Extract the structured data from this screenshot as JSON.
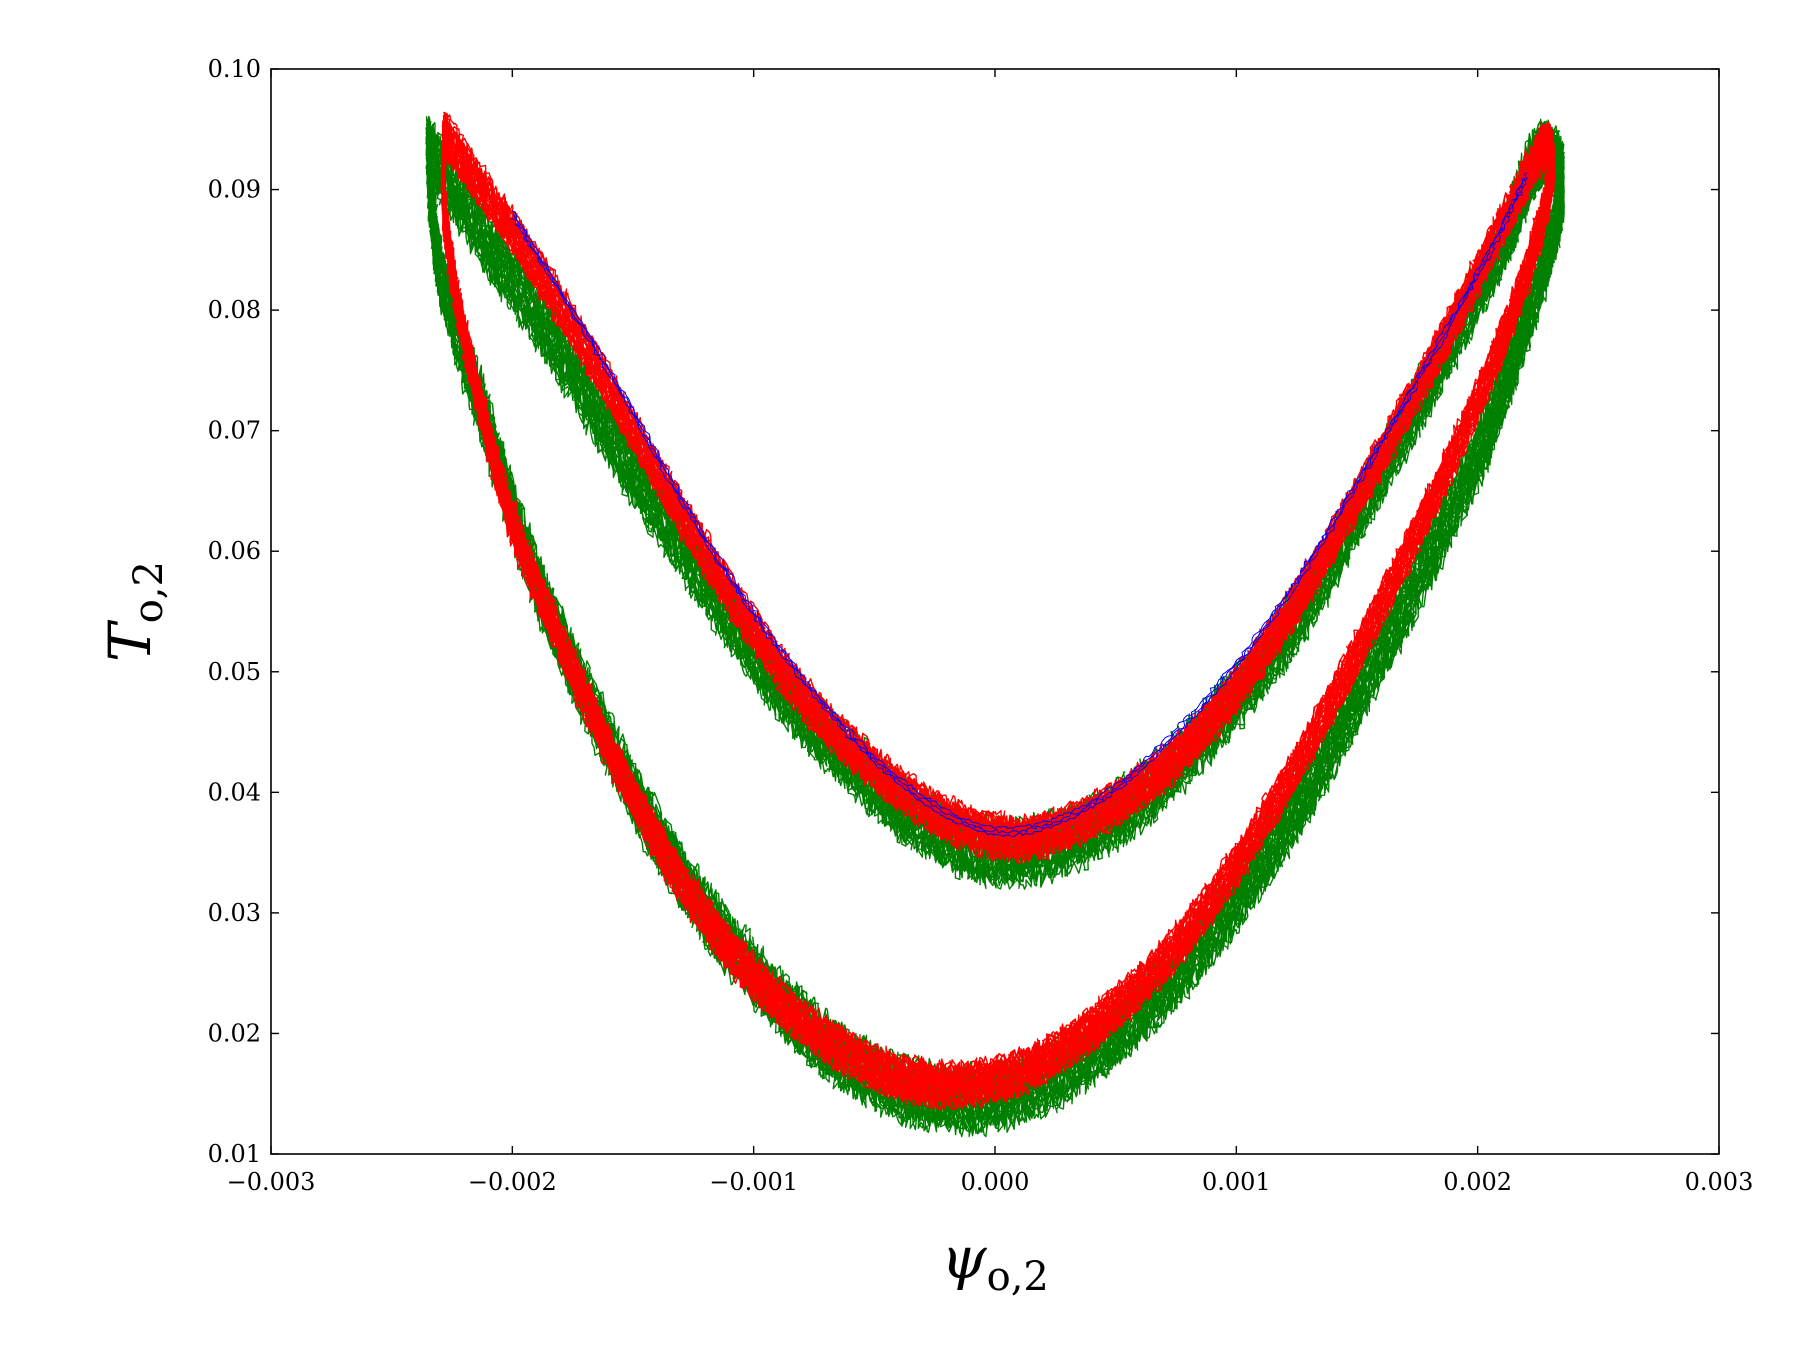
{
  "chart_data": {
    "type": "line",
    "title": "",
    "xlabel": "ψ_o,2",
    "ylabel": "T_o,2",
    "xlabel_parts": {
      "main": "ψ",
      "sub": "o,2"
    },
    "ylabel_parts": {
      "main": "T",
      "sub": "o,2"
    },
    "xlim": [
      -0.003,
      0.003
    ],
    "ylim": [
      0.01,
      0.1
    ],
    "xticks": [
      -0.003,
      -0.002,
      -0.001,
      0.0,
      0.001,
      0.002,
      0.003
    ],
    "xtick_labels": [
      "−0.003",
      "−0.002",
      "−0.001",
      "0.000",
      "0.001",
      "0.002",
      "0.003"
    ],
    "yticks": [
      0.01,
      0.02,
      0.03,
      0.04,
      0.05,
      0.06,
      0.07,
      0.08,
      0.09,
      0.1
    ],
    "ytick_labels": [
      "0.01",
      "0.02",
      "0.03",
      "0.04",
      "0.05",
      "0.06",
      "0.07",
      "0.08",
      "0.09",
      "0.10"
    ],
    "grid": false,
    "legend": "none",
    "series": [
      {
        "color": "#008000",
        "band_halfwidth": 0.0022,
        "points": [
          [
            -0.00235,
            0.0935
          ],
          [
            -0.0021,
            0.0855
          ],
          [
            -0.0018,
            0.0765
          ],
          [
            -0.0015,
            0.0665
          ],
          [
            -0.0012,
            0.0575
          ],
          [
            -0.0009,
            0.049
          ],
          [
            -0.0006,
            0.0425
          ],
          [
            -0.0003,
            0.0375
          ],
          [
            0.0,
            0.035
          ],
          [
            0.0003,
            0.036
          ],
          [
            0.0006,
            0.0395
          ],
          [
            0.0009,
            0.0455
          ],
          [
            0.0012,
            0.053
          ],
          [
            0.0015,
            0.063
          ],
          [
            0.0018,
            0.074
          ],
          [
            0.0021,
            0.0855
          ],
          [
            0.00225,
            0.0925
          ],
          [
            0.00235,
            0.09
          ],
          [
            0.0022,
            0.079
          ],
          [
            0.002,
            0.068
          ],
          [
            0.0017,
            0.0555
          ],
          [
            0.0014,
            0.044
          ],
          [
            0.0011,
            0.034
          ],
          [
            0.0008,
            0.026
          ],
          [
            0.0005,
            0.02
          ],
          [
            0.0002,
            0.016
          ],
          [
            -0.0001,
            0.0145
          ],
          [
            -0.0004,
            0.0155
          ],
          [
            -0.0007,
            0.019
          ],
          [
            -0.001,
            0.025
          ],
          [
            -0.0013,
            0.033
          ],
          [
            -0.0016,
            0.044
          ],
          [
            -0.0019,
            0.0575
          ],
          [
            -0.0021,
            0.07
          ],
          [
            -0.0023,
            0.0835
          ],
          [
            -0.00235,
            0.0935
          ]
        ]
      },
      {
        "color": "#ff0000",
        "band_halfwidth": 0.0015,
        "points": [
          [
            -0.00228,
            0.0945
          ],
          [
            -0.002,
            0.0865
          ],
          [
            -0.0017,
            0.077
          ],
          [
            -0.0014,
            0.0665
          ],
          [
            -0.0011,
            0.0565
          ],
          [
            -0.0008,
            0.048
          ],
          [
            -0.0005,
            0.042
          ],
          [
            -0.0002,
            0.0378
          ],
          [
            0.0001,
            0.0362
          ],
          [
            0.0004,
            0.038
          ],
          [
            0.0007,
            0.042
          ],
          [
            0.001,
            0.0485
          ],
          [
            0.0013,
            0.0575
          ],
          [
            0.0016,
            0.068
          ],
          [
            0.0019,
            0.079
          ],
          [
            0.00215,
            0.089
          ],
          [
            0.00228,
            0.0935
          ],
          [
            0.0023,
            0.0905
          ],
          [
            0.00215,
            0.08
          ],
          [
            0.0019,
            0.068
          ],
          [
            0.0016,
            0.0555
          ],
          [
            0.0013,
            0.044
          ],
          [
            0.001,
            0.034
          ],
          [
            0.0007,
            0.026
          ],
          [
            0.0004,
            0.0205
          ],
          [
            0.0001,
            0.0168
          ],
          [
            -0.0002,
            0.0157
          ],
          [
            -0.0005,
            0.0172
          ],
          [
            -0.0008,
            0.021
          ],
          [
            -0.0011,
            0.027
          ],
          [
            -0.0014,
            0.036
          ],
          [
            -0.0017,
            0.048
          ],
          [
            -0.002,
            0.0625
          ],
          [
            -0.0022,
            0.078
          ],
          [
            -0.00228,
            0.088
          ],
          [
            -0.00228,
            0.0945
          ]
        ]
      },
      {
        "color": "#0000ff",
        "band_halfwidth": 0.0003,
        "points": [
          [
            -0.002,
            0.088
          ],
          [
            -0.0016,
            0.075
          ],
          [
            -0.0012,
            0.061
          ],
          [
            -0.0008,
            0.0495
          ],
          [
            -0.0004,
            0.041
          ],
          [
            0.0,
            0.0368
          ],
          [
            0.0004,
            0.039
          ],
          [
            0.0008,
            0.046
          ],
          [
            0.0012,
            0.056
          ],
          [
            0.0016,
            0.069
          ],
          [
            0.002,
            0.083
          ],
          [
            0.0022,
            0.091
          ]
        ]
      }
    ]
  }
}
